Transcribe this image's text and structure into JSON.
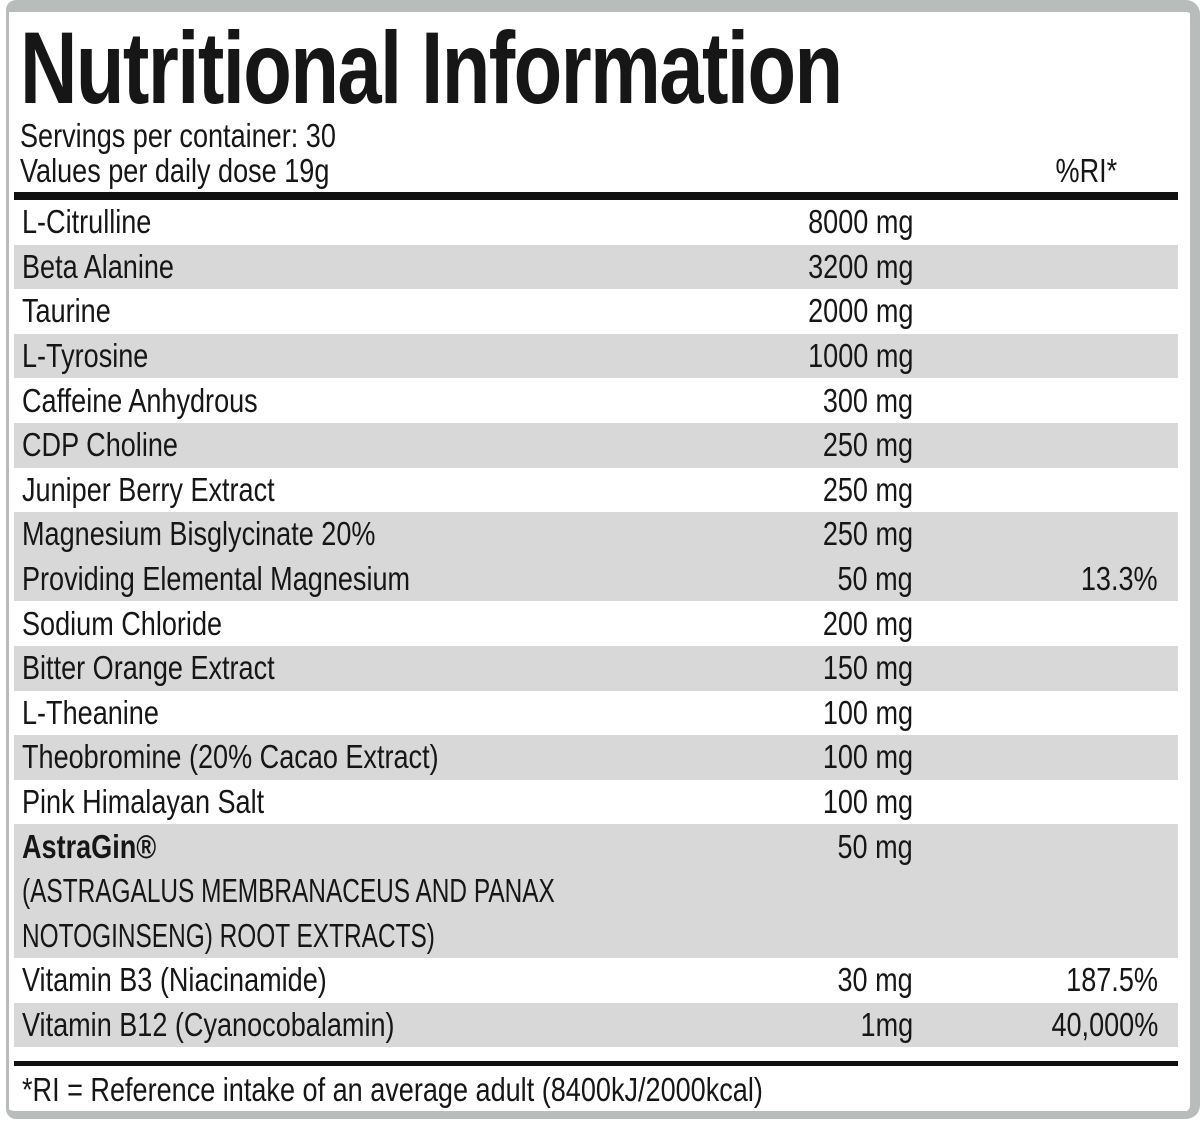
{
  "title": "Nutritional Information",
  "servings_line": "Servings per container: 30",
  "dose_line": "Values per daily dose 19g",
  "ri_header": "%RI*",
  "footnote": "*RI = Reference intake of an average adult (8400kJ/2000kcal)",
  "colors": {
    "band": "#d8d8d8",
    "frame": "#b8bcbb",
    "rule": "#101010",
    "text": "#161616"
  },
  "rows": [
    {
      "name": "L-Citrulline",
      "amount": "8000 mg",
      "ri": "",
      "shaded": false
    },
    {
      "name": "Beta Alanine",
      "amount": "3200 mg",
      "ri": "",
      "shaded": true
    },
    {
      "name": "Taurine",
      "amount": "2000 mg",
      "ri": "",
      "shaded": false
    },
    {
      "name": "L-Tyrosine",
      "amount": "1000 mg",
      "ri": "",
      "shaded": true
    },
    {
      "name": "Caffeine Anhydrous",
      "amount": "300 mg",
      "ri": "",
      "shaded": false
    },
    {
      "name": "CDP Choline",
      "amount": "250 mg",
      "ri": "",
      "shaded": true
    },
    {
      "name": "Juniper Berry Extract",
      "amount": "250 mg",
      "ri": "",
      "shaded": false
    },
    {
      "name": "Magnesium Bisglycinate 20%",
      "amount": "250 mg",
      "ri": "",
      "shaded": true
    },
    {
      "name": "Providing Elemental Magnesium",
      "amount": "50 mg",
      "ri": "13.3%",
      "shaded": true
    },
    {
      "name": "Sodium Chloride",
      "amount": "200 mg",
      "ri": "",
      "shaded": false
    },
    {
      "name": "Bitter Orange Extract",
      "amount": "150 mg",
      "ri": "",
      "shaded": true
    },
    {
      "name": "L-Theanine",
      "amount": "100 mg",
      "ri": "",
      "shaded": false
    },
    {
      "name": "Theobromine (20% Cacao Extract)",
      "amount": "100 mg",
      "ri": "",
      "shaded": true
    },
    {
      "name": "Pink Himalayan Salt",
      "amount": "100 mg",
      "ri": "",
      "shaded": false
    },
    {
      "name": "AstraGin®",
      "amount": "50 mg",
      "ri": "",
      "shaded": true,
      "bold": true,
      "sublines": [
        "(ASTRAGALUS MEMBRANACEUS AND PANAX",
        "NOTOGINSENG) ROOT EXTRACTS)"
      ]
    },
    {
      "name": "Vitamin B3 (Niacinamide)",
      "amount": "30 mg",
      "ri": "187.5%",
      "shaded": false
    },
    {
      "name": "Vitamin B12 (Cyanocobalamin)",
      "amount": "1mg",
      "ri": "40,000%",
      "shaded": true
    }
  ]
}
